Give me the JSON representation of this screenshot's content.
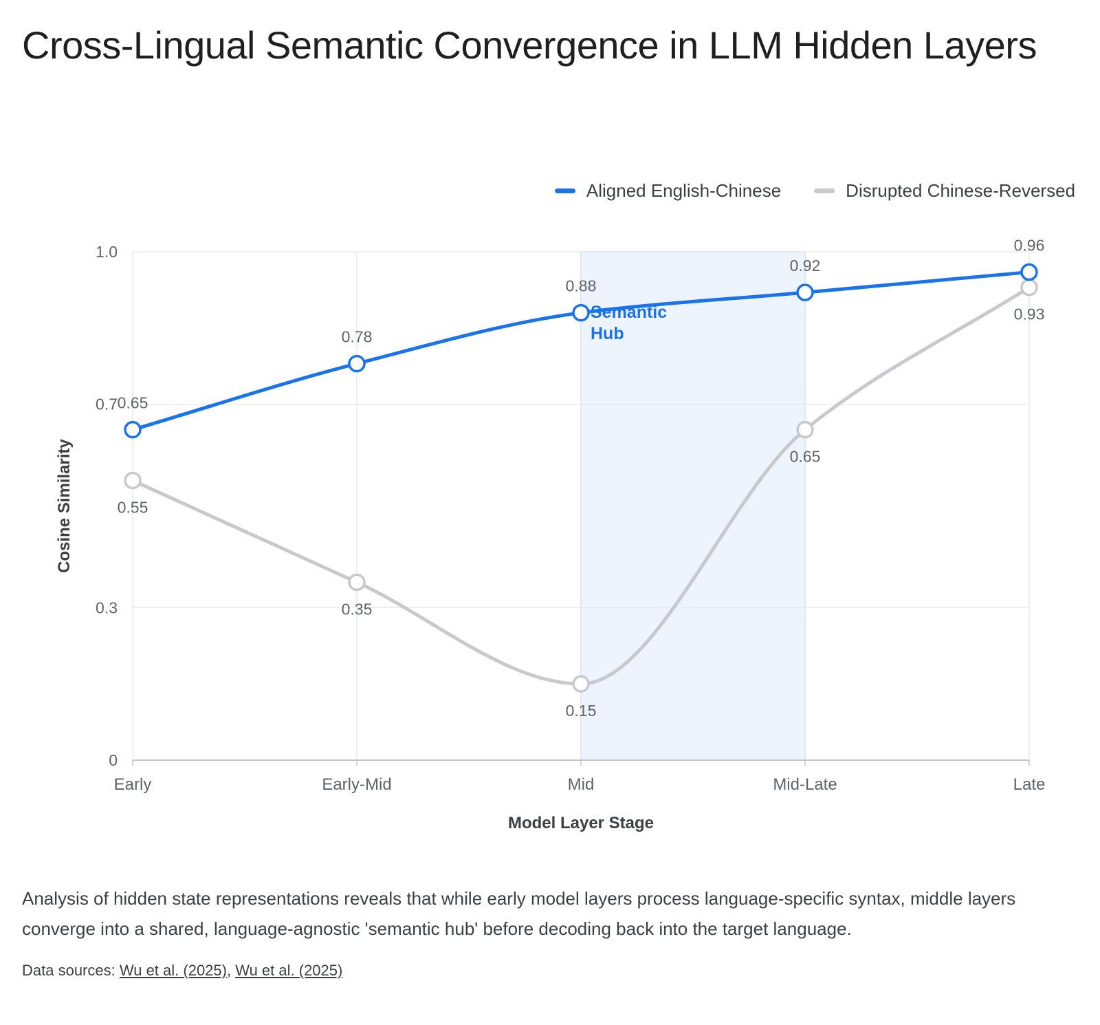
{
  "title": "Cross-Lingual Semantic Convergence in LLM Hidden Layers",
  "description": "Analysis of hidden state representations reveals that while early model layers process language-specific syntax, middle layers converge into a shared, language-agnostic 'semantic hub' before decoding back into the target language.",
  "sources": {
    "label": "Data sources:",
    "links": [
      "Wu et al. (2025)",
      "Wu et al. (2025)"
    ]
  },
  "chart_data": {
    "type": "line",
    "xlabel": "Model Layer Stage",
    "ylabel": "Cosine Similarity",
    "categories": [
      "Early",
      "Early-Mid",
      "Mid",
      "Mid-Late",
      "Late"
    ],
    "ylim": [
      0,
      1.0
    ],
    "yticks": [
      0,
      0.3,
      0.7,
      1.0
    ],
    "ytick_labels": [
      "0",
      "0.3",
      "0.7",
      "1.0"
    ],
    "grid": true,
    "legend_position": "top-right",
    "series": [
      {
        "name": "Aligned English-Chinese",
        "values": [
          0.65,
          0.78,
          0.88,
          0.92,
          0.96
        ],
        "color": "#1a73e8",
        "label_side": "above"
      },
      {
        "name": "Disrupted Chinese-Reversed",
        "values": [
          0.55,
          0.35,
          0.15,
          0.65,
          0.93
        ],
        "color": "#c8c9cc",
        "label_side": "below"
      }
    ],
    "annotations": [
      {
        "label": "Semantic Hub",
        "label_lines": [
          "Semantic",
          "Hub"
        ],
        "x_start": "Mid",
        "x_end": "Mid-Late",
        "fill": "#eef4fd",
        "border": "#bfd3ee",
        "text_color": "#1a73e8"
      }
    ]
  }
}
